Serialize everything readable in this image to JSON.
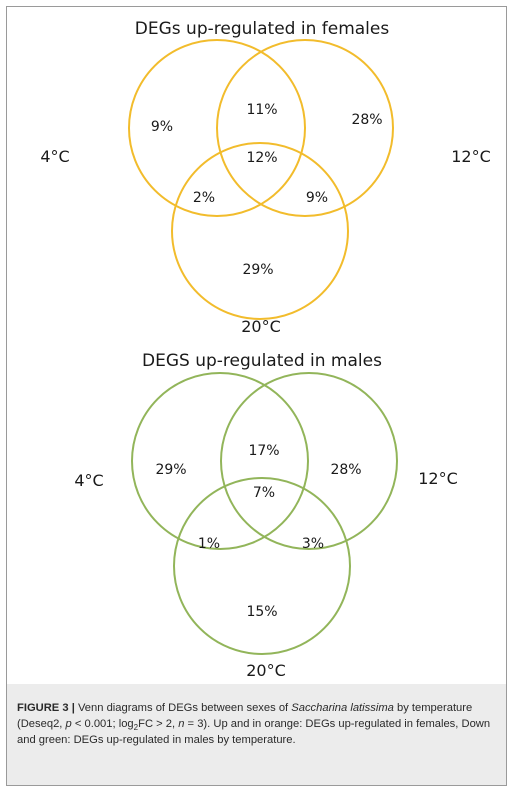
{
  "figure": {
    "colors": {
      "females": "#f2bc2c",
      "males": "#92b55a"
    },
    "panels": [
      {
        "id": "females",
        "title": "DEGs up-regulated in females",
        "labels": {
          "left": "4°C",
          "right": "12°C",
          "bottom": "20°C"
        },
        "regions": {
          "only_4": "9%",
          "only_12": "28%",
          "only_20": "29%",
          "4_12": "11%",
          "4_20": "2%",
          "12_20": "9%",
          "all": "12%"
        }
      },
      {
        "id": "males",
        "title": "DEGS up-regulated in males",
        "labels": {
          "left": "4°C",
          "right": "12°C",
          "bottom": "20°C"
        },
        "regions": {
          "only_4": "29%",
          "only_12": "28%",
          "only_20": "15%",
          "4_12": "17%",
          "4_20": "1%",
          "12_20": "3%",
          "all": "7%"
        }
      }
    ]
  },
  "caption": {
    "label": "FIGURE 3 |",
    "text_1": " Venn diagrams of DEGs between sexes of ",
    "species": "Saccharina latissima",
    "text_2": " by temperature (Deseq2, ",
    "p": "p",
    "text_3": " < 0.001; log",
    "sub": "2",
    "text_4": "FC > 2, ",
    "n": "n",
    "text_5": " = 3). Up and in orange: DEGs up-regulated in females, Down and green: DEGs up-regulated in males by temperature."
  }
}
